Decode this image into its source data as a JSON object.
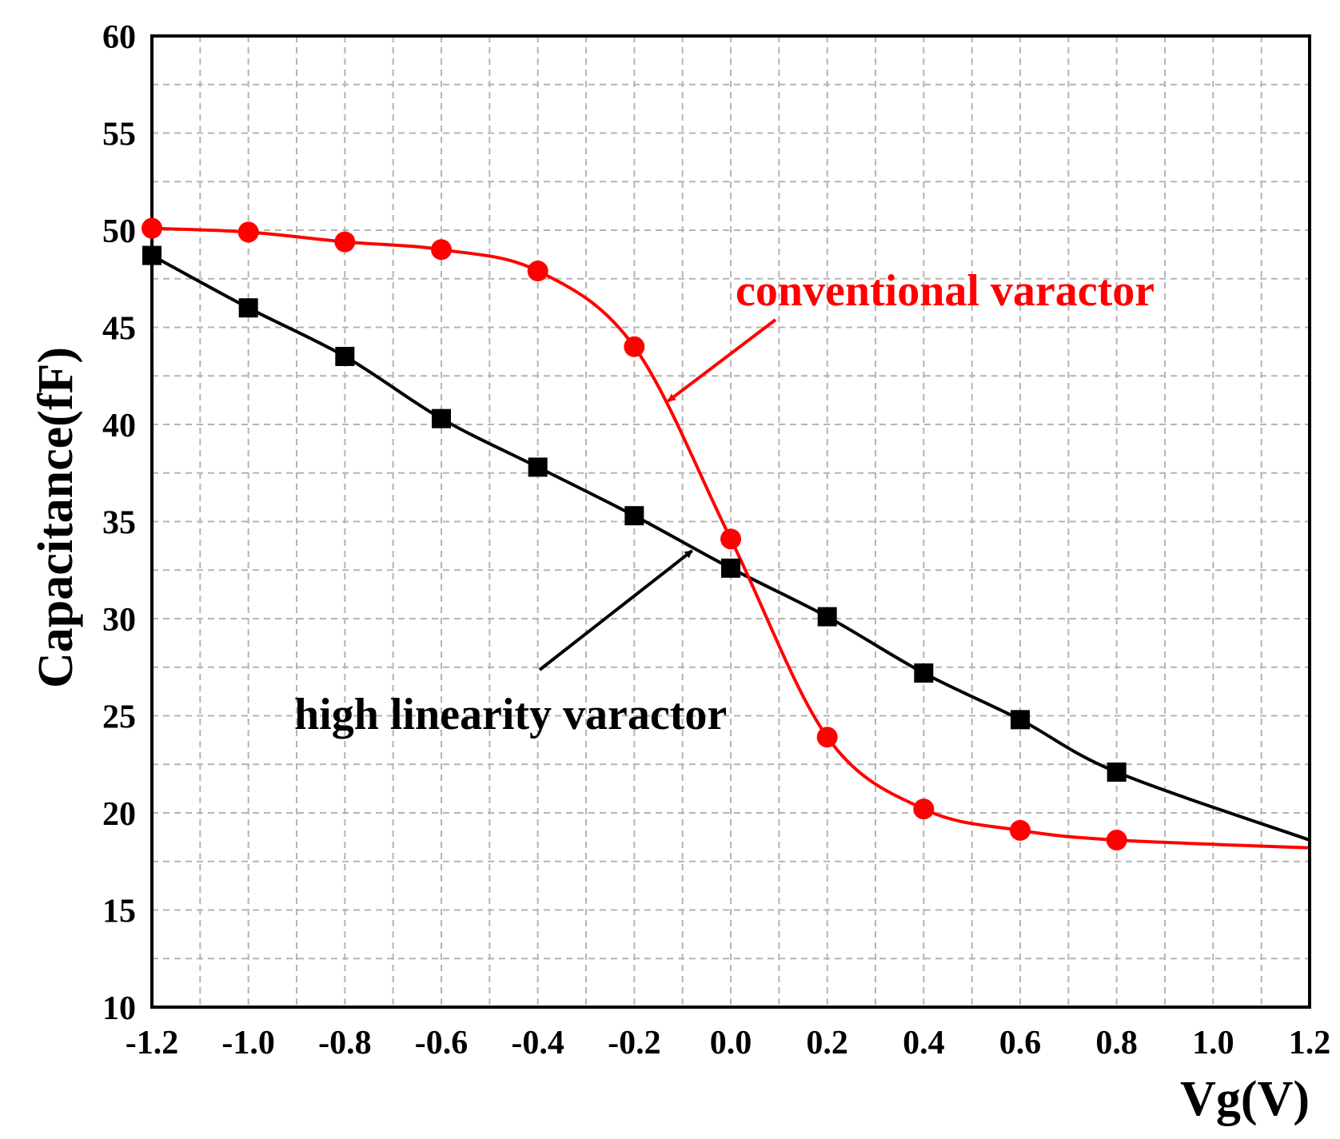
{
  "chart_data": {
    "type": "line",
    "title": "",
    "xlabel": "Vg(V)",
    "ylabel": "Capacitance(fF)",
    "xlim": [
      -1.2,
      1.2
    ],
    "ylim": [
      10,
      60
    ],
    "xticks": [
      "-1.2",
      "-1.0",
      "-0.8",
      "-0.6",
      "-0.4",
      "-0.2",
      "0.0",
      "0.2",
      "0.4",
      "0.6",
      "0.8",
      "1.0",
      "1.2"
    ],
    "yticks": [
      "10",
      "15",
      "20",
      "25",
      "30",
      "35",
      "40",
      "45",
      "50",
      "55",
      "60"
    ],
    "grid": true,
    "series": [
      {
        "name": "high linearity varactor",
        "color": "#000000",
        "marker": "square",
        "x": [
          -1.2,
          -1.0,
          -0.8,
          -0.6,
          -0.4,
          -0.2,
          0.0,
          0.2,
          0.4,
          0.6,
          0.8
        ],
        "y": [
          48.7,
          46.0,
          43.5,
          40.3,
          37.8,
          35.3,
          32.6,
          30.1,
          27.2,
          24.8,
          22.1
        ],
        "line_end": {
          "x": 1.2,
          "y": 18.6
        }
      },
      {
        "name": "conventional varactor",
        "color": "#ff0000",
        "marker": "circle",
        "x": [
          -1.2,
          -1.0,
          -0.8,
          -0.6,
          -0.4,
          -0.2,
          0.0,
          0.2,
          0.4,
          0.6,
          0.8
        ],
        "y": [
          50.1,
          49.9,
          49.4,
          49.0,
          47.9,
          44.0,
          34.1,
          23.9,
          20.2,
          19.1,
          18.6
        ],
        "line_end": {
          "x": 1.2,
          "y": 18.2
        }
      }
    ],
    "annotations": [
      {
        "text": "conventional varactor",
        "color": "#ff0000",
        "points_to": {
          "x": -0.13,
          "y": 41.2
        }
      },
      {
        "text": "high linearity varactor",
        "color": "#000000",
        "points_to": {
          "x": -0.08,
          "y": 33.5
        }
      }
    ]
  }
}
